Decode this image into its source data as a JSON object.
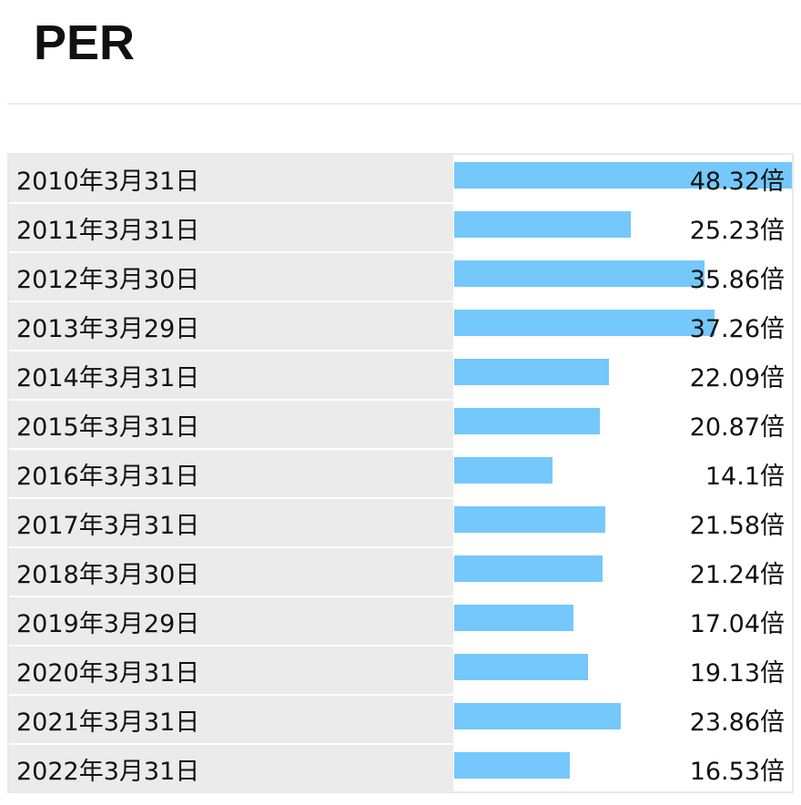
{
  "header": {
    "title": "PER"
  },
  "colors": {
    "bar": "#74c8fb",
    "label_bg": "#ebebeb"
  },
  "chart_data": {
    "type": "bar",
    "orientation": "horizontal",
    "title": "PER",
    "unit": "倍",
    "categories": [
      "2010年3月31日",
      "2011年3月31日",
      "2012年3月30日",
      "2013年3月29日",
      "2014年3月31日",
      "2015年3月31日",
      "2016年3月31日",
      "2017年3月31日",
      "2018年3月30日",
      "2019年3月29日",
      "2020年3月31日",
      "2021年3月31日",
      "2022年3月31日"
    ],
    "values": [
      48.32,
      25.23,
      35.86,
      37.26,
      22.09,
      20.87,
      14.1,
      21.58,
      21.24,
      17.04,
      19.13,
      23.86,
      16.53
    ],
    "value_labels": [
      "48.32倍",
      "25.23倍",
      "35.86倍",
      "37.26倍",
      "22.09倍",
      "20.87倍",
      "14.1倍",
      "21.58倍",
      "21.24倍",
      "17.04倍",
      "19.13倍",
      "23.86倍",
      "16.53倍"
    ],
    "xlim": [
      0,
      48.32
    ],
    "grid": false
  }
}
